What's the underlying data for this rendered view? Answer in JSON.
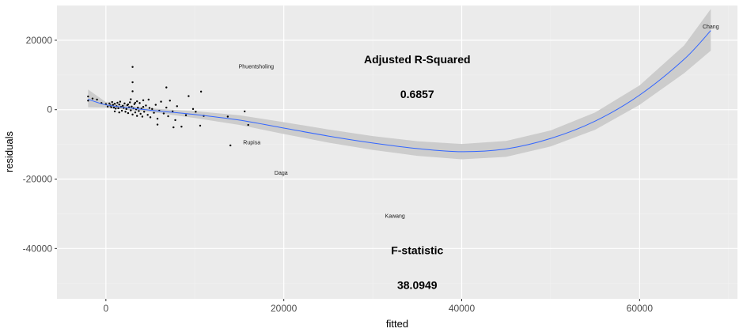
{
  "chart_data": {
    "type": "scatter",
    "xlabel": "fitted",
    "ylabel": "residuals",
    "xlim": [
      -5500,
      71000
    ],
    "ylim": [
      -54500,
      30000
    ],
    "x_ticks": [
      0,
      20000,
      40000,
      60000
    ],
    "y_ticks": [
      -40000,
      -20000,
      0,
      20000
    ],
    "grid": true,
    "colors": {
      "panel": "#ebebeb",
      "grid_major": "#ffffff",
      "grid_minor": "#f2f2f2",
      "smooth": "#3366ff",
      "ribbon": "#cccccc",
      "points": "#000000"
    },
    "points": [
      [
        -2000,
        3800
      ],
      [
        -2000,
        2600
      ],
      [
        -1500,
        3200
      ],
      [
        -1000,
        2900
      ],
      [
        -500,
        1900
      ],
      [
        0,
        1600
      ],
      [
        200,
        900
      ],
      [
        400,
        1800
      ],
      [
        500,
        1200
      ],
      [
        600,
        700
      ],
      [
        700,
        2200
      ],
      [
        800,
        1400
      ],
      [
        900,
        600
      ],
      [
        1000,
        1700
      ],
      [
        1100,
        300
      ],
      [
        1200,
        1000
      ],
      [
        1300,
        2000
      ],
      [
        1400,
        400
      ],
      [
        1500,
        1500
      ],
      [
        1600,
        2300
      ],
      [
        1700,
        800
      ],
      [
        1800,
        -300
      ],
      [
        1900,
        1100
      ],
      [
        2000,
        500
      ],
      [
        2100,
        1800
      ],
      [
        2200,
        -600
      ],
      [
        2300,
        200
      ],
      [
        2400,
        1300
      ],
      [
        2500,
        -1000
      ],
      [
        2600,
        700
      ],
      [
        2700,
        2100
      ],
      [
        2800,
        -200
      ],
      [
        2900,
        900
      ],
      [
        3000,
        -1400
      ],
      [
        3100,
        400
      ],
      [
        3200,
        1600
      ],
      [
        3300,
        -800
      ],
      [
        3400,
        100
      ],
      [
        3500,
        -1800
      ],
      [
        3600,
        600
      ],
      [
        3700,
        -400
      ],
      [
        3800,
        1900
      ],
      [
        3900,
        -1200
      ],
      [
        4000,
        300
      ],
      [
        4100,
        -2000
      ],
      [
        4200,
        800
      ],
      [
        4300,
        -600
      ],
      [
        4500,
        1200
      ],
      [
        4700,
        -1500
      ],
      [
        4900,
        500
      ],
      [
        5000,
        -2200
      ],
      [
        5200,
        200
      ],
      [
        5400,
        -900
      ],
      [
        5600,
        1400
      ],
      [
        5800,
        -2600
      ],
      [
        6000,
        -300
      ],
      [
        6200,
        2300
      ],
      [
        6500,
        -1100
      ],
      [
        6800,
        600
      ],
      [
        7000,
        -1900
      ],
      [
        7200,
        2600
      ],
      [
        7500,
        -500
      ],
      [
        7800,
        -3000
      ],
      [
        8000,
        1000
      ],
      [
        8500,
        -4900
      ],
      [
        9000,
        -1600
      ],
      [
        3000,
        12300
      ],
      [
        3000,
        7900
      ],
      [
        3000,
        5300
      ],
      [
        6800,
        6400
      ],
      [
        10700,
        5200
      ],
      [
        9300,
        3900
      ],
      [
        5800,
        -4300
      ],
      [
        7600,
        -5100
      ],
      [
        9800,
        200
      ],
      [
        10100,
        -600
      ],
      [
        10600,
        -4600
      ],
      [
        11000,
        -1800
      ],
      [
        13700,
        -2000
      ],
      [
        15600,
        -500
      ],
      [
        16000,
        -4400
      ],
      [
        14000,
        -10300
      ],
      [
        2500,
        1500
      ],
      [
        3500,
        2400
      ],
      [
        4200,
        2700
      ],
      [
        1000,
        -500
      ],
      [
        1500,
        -800
      ],
      [
        2800,
        3000
      ],
      [
        3300,
        2000
      ],
      [
        4800,
        2900
      ]
    ],
    "labeled_points": [
      {
        "label": "Phuentsholing",
        "x": 16900,
        "y": 12500
      },
      {
        "label": "Chang",
        "x": 68000,
        "y": 24000
      },
      {
        "label": "Rupisa",
        "x": 16400,
        "y": -9400
      },
      {
        "label": "Daga",
        "x": 19700,
        "y": -18200
      },
      {
        "label": "Kawang",
        "x": 32500,
        "y": -30600
      }
    ],
    "smooth": [
      [
        -2000,
        3000
      ],
      [
        0,
        1400
      ],
      [
        3000,
        400
      ],
      [
        6000,
        -400
      ],
      [
        10000,
        -1400
      ],
      [
        15000,
        -3000
      ],
      [
        20000,
        -5300
      ],
      [
        25000,
        -7600
      ],
      [
        30000,
        -9600
      ],
      [
        35000,
        -11200
      ],
      [
        40000,
        -12100
      ],
      [
        45000,
        -11300
      ],
      [
        50000,
        -8300
      ],
      [
        55000,
        -3300
      ],
      [
        60000,
        4200
      ],
      [
        65000,
        14500
      ],
      [
        68000,
        22800
      ]
    ],
    "smooth_band": [
      [
        -2000,
        700,
        5800
      ],
      [
        0,
        600,
        2200
      ],
      [
        3000,
        -200,
        1000
      ],
      [
        6000,
        -1000,
        200
      ],
      [
        10000,
        -2400,
        -400
      ],
      [
        15000,
        -4400,
        -1600
      ],
      [
        20000,
        -7000,
        -3600
      ],
      [
        25000,
        -9500,
        -5700
      ],
      [
        30000,
        -11600,
        -7600
      ],
      [
        35000,
        -13300,
        -9100
      ],
      [
        40000,
        -14300,
        -9900
      ],
      [
        45000,
        -13600,
        -9000
      ],
      [
        50000,
        -10600,
        -6000
      ],
      [
        55000,
        -5800,
        -800
      ],
      [
        60000,
        1400,
        7000
      ],
      [
        65000,
        10500,
        18500
      ],
      [
        68000,
        17000,
        29000
      ]
    ],
    "annotations": [
      {
        "id": "adj_r2_title",
        "text": "Adjusted R-Squared",
        "x": 35000,
        "y": 14500
      },
      {
        "id": "adj_r2_value",
        "text": "0.6857",
        "x": 35000,
        "y": 4500
      },
      {
        "id": "fstat_title",
        "text": "F-statistic",
        "x": 35000,
        "y": -40500
      },
      {
        "id": "fstat_value",
        "text": "38.0949",
        "x": 35000,
        "y": -50500
      }
    ]
  }
}
